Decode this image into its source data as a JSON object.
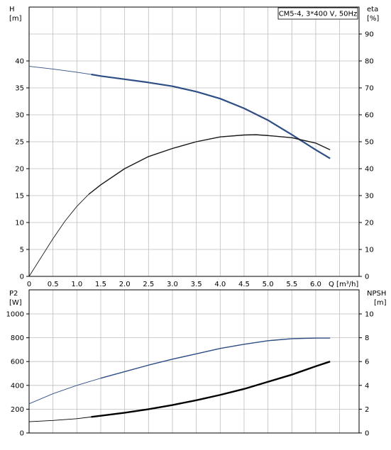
{
  "chart_data": [
    {
      "type": "line",
      "title": "CM5-4, 3*400 V, 50Hz",
      "xlabel": "Q [m³/h]",
      "left_axis": {
        "label_top": "H",
        "label_unit": "[m]",
        "range": [
          0,
          45
        ],
        "ticks": [
          "0",
          "5",
          "10",
          "15",
          "20",
          "25",
          "30",
          "35",
          "40"
        ]
      },
      "right_axis": {
        "label_top": "eta",
        "label_unit": "[%]",
        "range": [
          0,
          90
        ],
        "ticks": [
          "0",
          "10",
          "20",
          "30",
          "40",
          "50",
          "60",
          "70",
          "80",
          "90"
        ]
      },
      "xlim": [
        0,
        6.5
      ],
      "x_ticks": [
        "0",
        "0.5",
        "1.0",
        "1.5",
        "2.0",
        "2.5",
        "3.0",
        "3.5",
        "4.0",
        "4.5",
        "5.0",
        "5.5",
        "6.0"
      ],
      "grid": true,
      "series": [
        {
          "axis": "left",
          "color": "#2e4e86",
          "x": [
            0,
            0.5,
            1.0,
            1.3,
            1.5,
            2.0,
            2.5,
            3.0,
            3.5,
            4.0,
            4.5,
            5.0,
            5.5,
            6.0,
            6.3
          ],
          "y": [
            39,
            38.5,
            37.9,
            37.5,
            37.2,
            36.6,
            36.0,
            35.3,
            34.3,
            33.0,
            31.2,
            29.0,
            26.3,
            23.5,
            21.9
          ]
        },
        {
          "axis": "right",
          "color": "#1a1a1a",
          "x": [
            0,
            0.25,
            0.5,
            0.75,
            1.0,
            1.25,
            1.5,
            2.0,
            2.5,
            3.0,
            3.5,
            4.0,
            4.5,
            4.75,
            5.0,
            5.5,
            6.0,
            6.3
          ],
          "y": [
            0,
            7,
            14,
            20.5,
            26,
            30.5,
            34,
            40,
            44.5,
            47.5,
            50,
            51.8,
            52.5,
            52.6,
            52.3,
            51.5,
            49.5,
            47
          ]
        }
      ]
    },
    {
      "type": "line",
      "xlabel": "",
      "left_axis": {
        "label_top": "P2",
        "label_unit": "[W]",
        "range": [
          0,
          1000
        ],
        "ticks": [
          "0",
          "200",
          "400",
          "600",
          "800",
          "1000"
        ]
      },
      "right_axis": {
        "label_top": "NPSH",
        "label_unit": "[m]",
        "range": [
          0,
          10
        ],
        "ticks": [
          "0",
          "2",
          "4",
          "6",
          "8",
          "10"
        ]
      },
      "xlim": [
        0,
        6.5
      ],
      "grid": true,
      "series": [
        {
          "axis": "left",
          "color": "#2e4e86",
          "x": [
            0,
            0.5,
            1.0,
            1.5,
            2.0,
            2.5,
            3.0,
            3.5,
            4.0,
            4.5,
            5.0,
            5.5,
            6.0,
            6.3
          ],
          "y": [
            245,
            330,
            400,
            460,
            515,
            570,
            620,
            665,
            710,
            745,
            775,
            792,
            797,
            797
          ]
        },
        {
          "axis": "right",
          "color": "#000000",
          "x": [
            0,
            0.5,
            1.0,
            1.3,
            1.5,
            2.0,
            2.5,
            3.0,
            3.5,
            4.0,
            4.5,
            5.0,
            5.5,
            6.0,
            6.3
          ],
          "y": [
            0.95,
            1.05,
            1.2,
            1.35,
            1.45,
            1.7,
            2.0,
            2.35,
            2.75,
            3.2,
            3.7,
            4.3,
            4.9,
            5.6,
            6.0
          ]
        }
      ]
    }
  ]
}
